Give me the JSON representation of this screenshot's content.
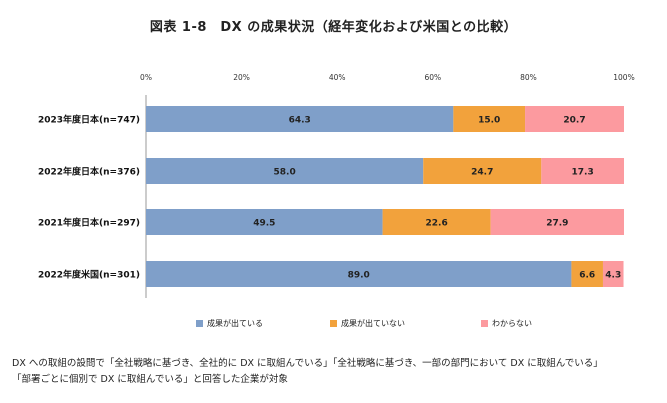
{
  "page": {
    "title": "図表 1-8　DX の成果状況（経年変化および米国との比較）",
    "note_line1": "DX への取組の設問で「全社戦略に基づき、全社的に DX に取組んでいる」「全社戦略に基づき、一部の部門において DX に取組んでいる」",
    "note_line2": "「部署ごとに個別で DX に取組んでいる」と回答した企業が対象"
  },
  "chart_data": {
    "type": "bar",
    "orientation": "horizontal",
    "stacked": true,
    "title": "図表 1-8　DX の成果状況（経年変化および米国との比較）",
    "categories": [
      "2023年度日本(n=747)",
      "2022年度日本(n=376)",
      "2021年度日本(n=297)",
      "2022年度米国(n=301)"
    ],
    "series": [
      {
        "name": "成果が出ている",
        "color": "#7f9fc9",
        "values": [
          64.3,
          58.0,
          49.5,
          89.0
        ]
      },
      {
        "name": "成果が出ていない",
        "color": "#f2a23c",
        "values": [
          15.0,
          24.7,
          22.6,
          6.6
        ]
      },
      {
        "name": "わからない",
        "color": "#fc9a9f",
        "values": [
          20.7,
          17.3,
          27.9,
          4.3
        ]
      }
    ],
    "xlim": [
      0,
      100
    ],
    "x_ticks": [
      "0%",
      "20%",
      "40%",
      "60%",
      "80%",
      "100%"
    ],
    "grid": false,
    "legend_position": "bottom"
  }
}
